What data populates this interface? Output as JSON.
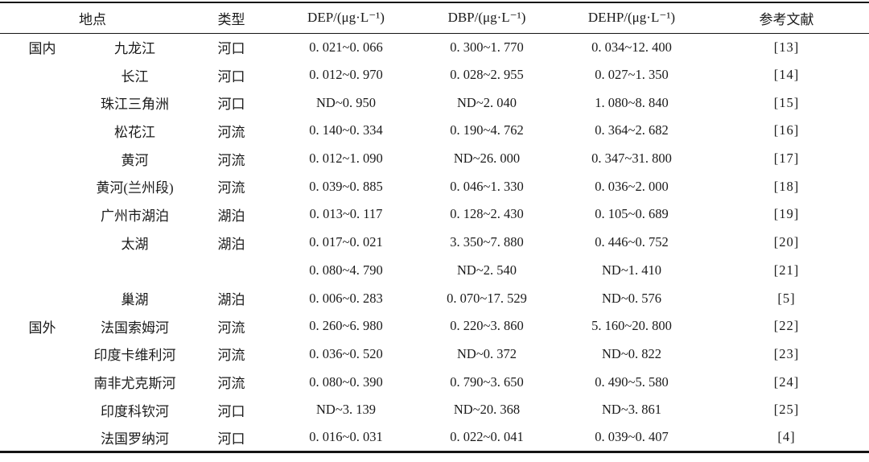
{
  "page": {
    "background_color": "#ffffff",
    "ink_color": "#1a1a1a",
    "rule_color": "#141414"
  },
  "table": {
    "columns": {
      "location": "地点",
      "type": "类型",
      "dep": "DEP/(μg·L⁻¹)",
      "dbp": "DBP/(μg·L⁻¹)",
      "dehp": "DEHP/(μg·L⁻¹)",
      "ref": "参考文献"
    },
    "rows": [
      {
        "group": "国内",
        "location": "九龙江",
        "type": "河口",
        "dep": "0. 021~0. 066",
        "dbp": "0. 300~1. 770",
        "dehp": "0. 034~12. 400",
        "ref": "[13]"
      },
      {
        "group": "",
        "location": "长江",
        "type": "河口",
        "dep": "0. 012~0. 970",
        "dbp": "0. 028~2. 955",
        "dehp": "0. 027~1. 350",
        "ref": "[14]"
      },
      {
        "group": "",
        "location": "珠江三角洲",
        "type": "河口",
        "dep": "ND~0. 950",
        "dbp": "ND~2. 040",
        "dehp": "1. 080~8. 840",
        "ref": "[15]"
      },
      {
        "group": "",
        "location": "松花江",
        "type": "河流",
        "dep": "0. 140~0. 334",
        "dbp": "0. 190~4. 762",
        "dehp": "0. 364~2. 682",
        "ref": "[16]"
      },
      {
        "group": "",
        "location": "黄河",
        "type": "河流",
        "dep": "0. 012~1. 090",
        "dbp": "ND~26. 000",
        "dehp": "0. 347~31. 800",
        "ref": "[17]"
      },
      {
        "group": "",
        "location": "黄河(兰州段)",
        "type": "河流",
        "dep": "0. 039~0. 885",
        "dbp": "0. 046~1. 330",
        "dehp": "0. 036~2. 000",
        "ref": "[18]"
      },
      {
        "group": "",
        "location": "广州市湖泊",
        "type": "湖泊",
        "dep": "0. 013~0. 117",
        "dbp": "0. 128~2. 430",
        "dehp": "0. 105~0. 689",
        "ref": "[19]"
      },
      {
        "group": "",
        "location": "太湖",
        "type": "湖泊",
        "dep": "0. 017~0. 021",
        "dbp": "3. 350~7. 880",
        "dehp": "0. 446~0. 752",
        "ref": "[20]"
      },
      {
        "group": "",
        "location": "",
        "type": "",
        "dep": "0. 080~4. 790",
        "dbp": "ND~2. 540",
        "dehp": "ND~1. 410",
        "ref": "[21]"
      },
      {
        "group": "",
        "location": "巢湖",
        "type": "湖泊",
        "dep": "0. 006~0. 283",
        "dbp": "0. 070~17. 529",
        "dehp": "ND~0. 576",
        "ref": "[5]"
      },
      {
        "group": "国外",
        "location": "法国索姆河",
        "type": "河流",
        "dep": "0. 260~6. 980",
        "dbp": "0. 220~3. 860",
        "dehp": "5. 160~20. 800",
        "ref": "[22]"
      },
      {
        "group": "",
        "location": "印度卡维利河",
        "type": "河流",
        "dep": "0. 036~0. 520",
        "dbp": "ND~0. 372",
        "dehp": "ND~0. 822",
        "ref": "[23]"
      },
      {
        "group": "",
        "location": "南非尤克斯河",
        "type": "河流",
        "dep": "0. 080~0. 390",
        "dbp": "0. 790~3. 650",
        "dehp": "0. 490~5. 580",
        "ref": "[24]"
      },
      {
        "group": "",
        "location": "印度科钦河",
        "type": "河口",
        "dep": "ND~3. 139",
        "dbp": "ND~20. 368",
        "dehp": "ND~3. 861",
        "ref": "[25]"
      },
      {
        "group": "",
        "location": "法国罗纳河",
        "type": "河口",
        "dep": "0. 016~0. 031",
        "dbp": "0. 022~0. 041",
        "dehp": "0. 039~0. 407",
        "ref": "[4]"
      }
    ]
  }
}
